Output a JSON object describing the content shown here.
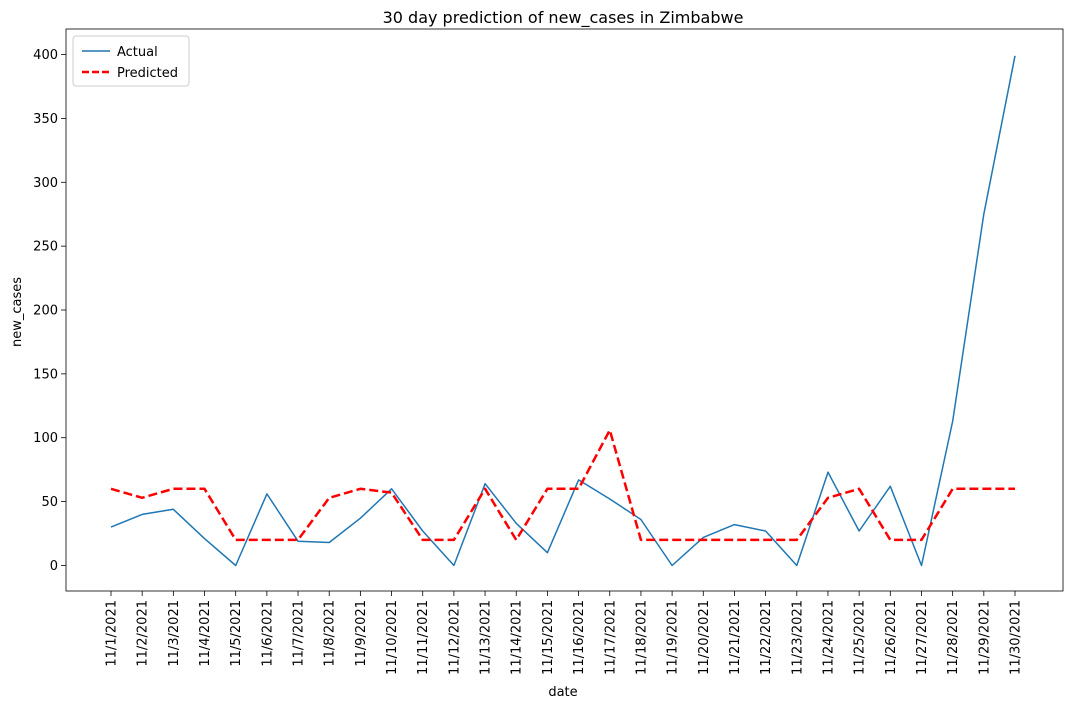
{
  "chart_data": {
    "type": "line",
    "title": "30 day prediction of new_cases in Zimbabwe",
    "xlabel": "date",
    "ylabel": "new_cases",
    "ylim": [
      -20,
      420
    ],
    "yticks": [
      0,
      50,
      100,
      150,
      200,
      250,
      300,
      350,
      400
    ],
    "grid": false,
    "legend_position": "top-left",
    "categories": [
      "11/1/2021",
      "11/2/2021",
      "11/3/2021",
      "11/4/2021",
      "11/5/2021",
      "11/6/2021",
      "11/7/2021",
      "11/8/2021",
      "11/9/2021",
      "11/10/2021",
      "11/11/2021",
      "11/12/2021",
      "11/13/2021",
      "11/14/2021",
      "11/15/2021",
      "11/16/2021",
      "11/17/2021",
      "11/18/2021",
      "11/19/2021",
      "11/20/2021",
      "11/21/2021",
      "11/22/2021",
      "11/23/2021",
      "11/24/2021",
      "11/25/2021",
      "11/26/2021",
      "11/27/2021",
      "11/28/2021",
      "11/29/2021",
      "11/30/2021"
    ],
    "series": [
      {
        "name": "Actual",
        "color": "#1f77b4",
        "style": "solid",
        "values": [
          30,
          40,
          44,
          21,
          0,
          56,
          19,
          18,
          37,
          60,
          27,
          0,
          64,
          33,
          10,
          67,
          52,
          36,
          0,
          22,
          32,
          27,
          0,
          73,
          27,
          62,
          0,
          113,
          275,
          399
        ]
      },
      {
        "name": "Predicted",
        "color": "#ff0000",
        "style": "dashed",
        "values": [
          60,
          53,
          60,
          60,
          20,
          20,
          20,
          53,
          60,
          57,
          20,
          20,
          60,
          20,
          60,
          60,
          106,
          20,
          20,
          20,
          20,
          20,
          20,
          53,
          60,
          20,
          20,
          60,
          60,
          60
        ]
      }
    ]
  }
}
